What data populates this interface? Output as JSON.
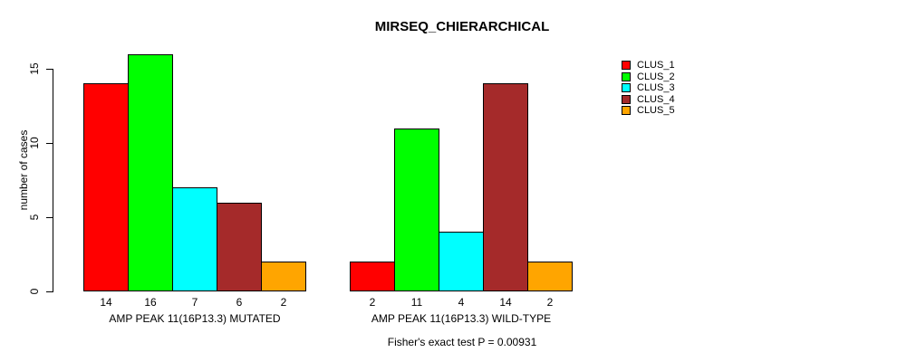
{
  "chart_data": {
    "type": "bar",
    "title": "MIRSEQ_CHIERARCHICAL",
    "ylabel": "number of cases",
    "xlabel": "",
    "ylim": [
      0,
      16
    ],
    "yticks": [
      0,
      5,
      10,
      15
    ],
    "grid": false,
    "legend_position": "right",
    "series_names": [
      "CLUS_1",
      "CLUS_2",
      "CLUS_3",
      "CLUS_4",
      "CLUS_5"
    ],
    "series_colors": [
      "#ff0000",
      "#00ff00",
      "#00ffff",
      "#a52a2a",
      "#ffa500"
    ],
    "groups": [
      {
        "label": "AMP PEAK 11(16P13.3) MUTATED",
        "values": [
          14,
          16,
          7,
          6,
          2
        ]
      },
      {
        "label": "AMP PEAK 11(16P13.3) WILD-TYPE",
        "values": [
          2,
          11,
          4,
          14,
          2
        ]
      }
    ],
    "bar_value_labels_shown": true,
    "annotation": "Fisher's exact test P = 0.00931"
  }
}
